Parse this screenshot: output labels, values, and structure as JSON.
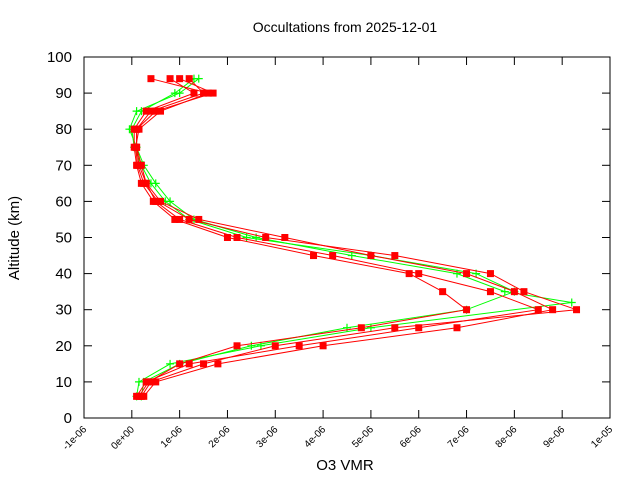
{
  "chart_data": {
    "type": "line",
    "title": "Occultations from 2025-12-01",
    "xlabel": "O3 VMR",
    "ylabel": "Altitude (km)",
    "xlim": [
      -1e-06,
      1e-05
    ],
    "ylim": [
      0,
      100
    ],
    "xticks": [
      {
        "value": -1e-06,
        "label": "-1e-06"
      },
      {
        "value": 0,
        "label": "0e+00"
      },
      {
        "value": 1e-06,
        "label": "1e-06"
      },
      {
        "value": 2e-06,
        "label": "2e-06"
      },
      {
        "value": 3e-06,
        "label": "3e-06"
      },
      {
        "value": 4e-06,
        "label": "4e-06"
      },
      {
        "value": 5e-06,
        "label": "5e-06"
      },
      {
        "value": 6e-06,
        "label": "6e-06"
      },
      {
        "value": 7e-06,
        "label": "7e-06"
      },
      {
        "value": 8e-06,
        "label": "8e-06"
      },
      {
        "value": 9e-06,
        "label": "9e-06"
      },
      {
        "value": 1e-05,
        "label": "1e-05"
      }
    ],
    "yticks": [
      0,
      10,
      20,
      30,
      40,
      50,
      60,
      70,
      80,
      90,
      100
    ],
    "series": [
      {
        "color": "#00ff00",
        "marker": "plus",
        "x": [
          1e-07,
          1.5e-07,
          8e-07,
          2.7e-06,
          5e-06,
          9.2e-06,
          7.8e-06,
          6.8e-06,
          4.6e-06,
          2.6e-06,
          1.3e-06,
          8e-07,
          5e-07,
          2.5e-07,
          1e-07,
          -5e-08,
          1e-07,
          1e-06,
          1.4e-06
        ],
        "values": [
          6,
          10,
          15,
          20,
          25,
          32,
          35,
          40,
          45,
          50,
          55,
          60,
          65,
          70,
          75,
          80,
          85,
          90,
          94
        ]
      },
      {
        "color": "#00ff00",
        "marker": "plus",
        "x": [
          2e-07,
          2.5e-07,
          1e-06,
          2.5e-06,
          4.5e-06,
          7e-06,
          8e-06,
          7.2e-06,
          5e-06,
          2.4e-06,
          1.2e-06,
          7e-07,
          4e-07,
          2e-07,
          5e-08,
          0,
          2e-07,
          9e-07,
          1.3e-06
        ],
        "values": [
          6,
          10,
          15,
          20,
          25,
          30,
          35,
          40,
          45,
          50,
          55,
          60,
          65,
          70,
          75,
          80,
          85,
          90,
          94
        ]
      },
      {
        "color": "#ff0000",
        "marker": "square",
        "x": [
          1e-07,
          3e-07,
          1.2e-06,
          3.5e-06,
          6e-06,
          8.5e-06,
          7.5e-06,
          6e-06,
          4.2e-06,
          2.2e-06,
          1e-06,
          5e-07,
          3e-07,
          1.5e-07,
          1e-07,
          1e-07,
          4e-07,
          1.5e-06,
          1.2e-06
        ],
        "values": [
          6,
          10,
          15,
          20,
          25,
          30,
          35,
          40,
          45,
          50,
          55,
          60,
          65,
          70,
          75,
          80,
          85,
          90,
          94
        ]
      },
      {
        "color": "#ff0000",
        "marker": "square",
        "x": [
          2e-07,
          4e-07,
          1.5e-06,
          3e-06,
          5.5e-06,
          9.3e-06,
          8.2e-06,
          7.5e-06,
          5.5e-06,
          2.8e-06,
          1.2e-06,
          5.5e-07,
          2.5e-07,
          1.2e-07,
          8e-08,
          1.5e-07,
          6e-07,
          1.6e-06,
          4e-07
        ],
        "values": [
          6,
          10,
          15,
          20,
          25,
          30,
          35,
          40,
          45,
          50,
          55,
          60,
          65,
          70,
          75,
          80,
          85,
          90,
          94
        ]
      },
      {
        "color": "#ff0000",
        "marker": "square",
        "x": [
          1.5e-07,
          3.5e-07,
          1e-06,
          2.2e-06,
          4.8e-06,
          7e-06,
          6.5e-06,
          5.8e-06,
          3.8e-06,
          2e-06,
          9e-07,
          4.5e-07,
          2e-07,
          1e-07,
          5e-08,
          5e-08,
          3e-07,
          1.3e-06,
          8e-07
        ],
        "values": [
          6,
          10,
          15,
          20,
          25,
          30,
          35,
          40,
          45,
          50,
          55,
          60,
          65,
          70,
          75,
          80,
          85,
          90,
          94
        ]
      },
      {
        "color": "#ff0000",
        "marker": "square",
        "x": [
          2.5e-07,
          5e-07,
          1.8e-06,
          4e-06,
          6.8e-06,
          8.8e-06,
          8e-06,
          7e-06,
          5e-06,
          3.2e-06,
          1.4e-06,
          6e-07,
          3e-07,
          2e-07,
          1e-07,
          1e-07,
          5e-07,
          1.7e-06,
          1e-06
        ],
        "values": [
          6,
          10,
          15,
          20,
          25,
          30,
          35,
          40,
          45,
          50,
          55,
          60,
          65,
          70,
          75,
          80,
          85,
          90,
          94
        ]
      }
    ]
  }
}
